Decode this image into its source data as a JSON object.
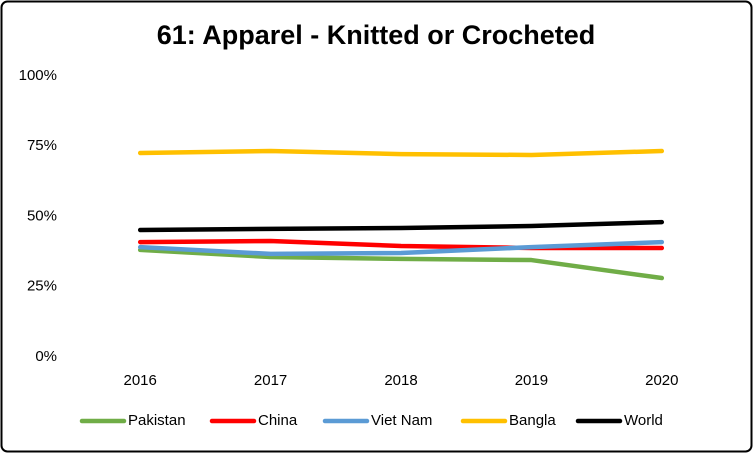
{
  "chart_data": {
    "type": "line",
    "title": "61: Apparel - Knitted or Crocheted",
    "categories": [
      "2016",
      "2017",
      "2018",
      "2019",
      "2020"
    ],
    "series": [
      {
        "name": "Pakistan",
        "color": "#70ad47",
        "values": [
          38.1,
          35.6,
          34.9,
          34.5,
          28.1
        ]
      },
      {
        "name": "China",
        "color": "#ff0000",
        "values": [
          40.9,
          41.3,
          39.5,
          38.8,
          38.8
        ]
      },
      {
        "name": "Viet Nam",
        "color": "#5b9bd5",
        "values": [
          39.1,
          36.7,
          37.0,
          39.1,
          40.9
        ]
      },
      {
        "name": "Bangla",
        "color": "#ffc000",
        "values": [
          72.6,
          73.3,
          72.2,
          71.9,
          73.3
        ]
      },
      {
        "name": "World",
        "color": "#000000",
        "values": [
          45.2,
          45.6,
          45.9,
          46.6,
          48.0
        ]
      }
    ],
    "ylim": [
      0,
      100
    ],
    "yticks": [
      {
        "value": 0,
        "label": "0%"
      },
      {
        "value": 25,
        "label": "25%"
      },
      {
        "value": 50,
        "label": "50%"
      },
      {
        "value": 75,
        "label": "75%"
      },
      {
        "value": 100,
        "label": "100%"
      }
    ],
    "grid": false,
    "legend": "bottom"
  }
}
